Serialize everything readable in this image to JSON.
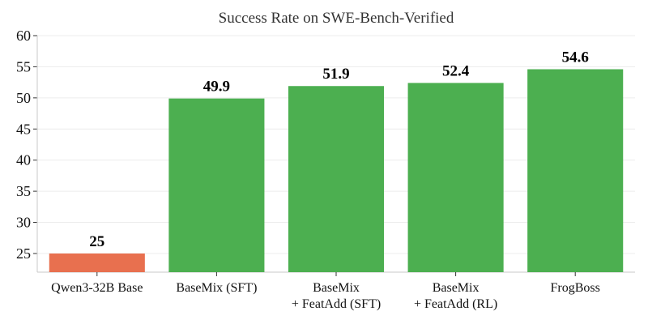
{
  "chart_data": {
    "type": "bar",
    "title": "Success Rate on SWE-Bench-Verified",
    "categories": [
      [
        "Qwen3-32B Base"
      ],
      [
        "BaseMix (SFT)"
      ],
      [
        "BaseMix",
        "+ FeatAdd (SFT)"
      ],
      [
        "BaseMix",
        "+ FeatAdd (RL)"
      ],
      [
        "FrogBoss"
      ]
    ],
    "values": [
      25,
      49.9,
      51.9,
      52.4,
      54.6
    ],
    "value_labels": [
      "25",
      "49.9",
      "51.9",
      "52.4",
      "54.6"
    ],
    "bar_colors": [
      "#E8704F",
      "#4CAF50",
      "#4CAF50",
      "#4CAF50",
      "#4CAF50"
    ],
    "ylim": [
      22,
      60
    ],
    "yticks": [
      25,
      30,
      35,
      40,
      45,
      50,
      55,
      60
    ],
    "xlabel": "",
    "ylabel": "",
    "grid": "horizontal",
    "legend": "none"
  }
}
